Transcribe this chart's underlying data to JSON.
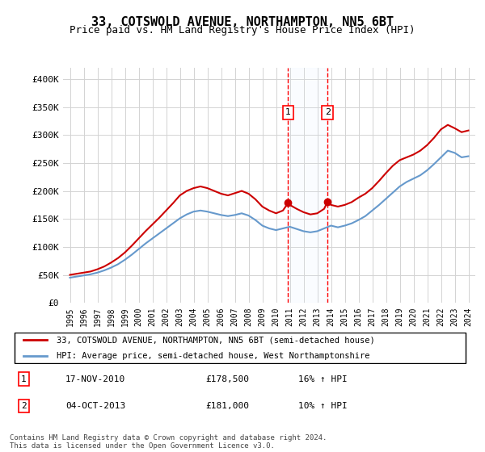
{
  "title": "33, COTSWOLD AVENUE, NORTHAMPTON, NN5 6BT",
  "subtitle": "Price paid vs. HM Land Registry's House Price Index (HPI)",
  "legend_line1": "33, COTSWOLD AVENUE, NORTHAMPTON, NN5 6BT (semi-detached house)",
  "legend_line2": "HPI: Average price, semi-detached house, West Northamptonshire",
  "footer": "Contains HM Land Registry data © Crown copyright and database right 2024.\nThis data is licensed under the Open Government Licence v3.0.",
  "sale1_label": "1",
  "sale1_date": "17-NOV-2010",
  "sale1_price": "£178,500",
  "sale1_hpi": "16% ↑ HPI",
  "sale2_label": "2",
  "sale2_date": "04-OCT-2013",
  "sale2_price": "£181,000",
  "sale2_hpi": "10% ↑ HPI",
  "property_color": "#cc0000",
  "hpi_color": "#6699cc",
  "annotation_bg": "#ddeeff",
  "ylim": [
    0,
    420000
  ],
  "yticks": [
    0,
    50000,
    100000,
    150000,
    200000,
    250000,
    300000,
    350000,
    400000
  ],
  "ytick_labels": [
    "£0",
    "£50K",
    "£100K",
    "£150K",
    "£200K",
    "£250K",
    "£300K",
    "£350K",
    "£400K"
  ],
  "sale1_x": 2010.88,
  "sale1_y": 178500,
  "sale2_x": 2013.75,
  "sale2_y": 181000,
  "property_x": [
    1995,
    1995.5,
    1996,
    1996.5,
    1997,
    1997.5,
    1998,
    1998.5,
    1999,
    1999.5,
    2000,
    2000.5,
    2001,
    2001.5,
    2002,
    2002.5,
    2003,
    2003.5,
    2004,
    2004.5,
    2005,
    2005.5,
    2006,
    2006.5,
    2007,
    2007.5,
    2008,
    2008.5,
    2009,
    2009.5,
    2010,
    2010.5,
    2010.88,
    2011,
    2011.5,
    2012,
    2012.5,
    2013,
    2013.5,
    2013.75,
    2014,
    2014.5,
    2015,
    2015.5,
    2016,
    2016.5,
    2017,
    2017.5,
    2018,
    2018.5,
    2019,
    2019.5,
    2020,
    2020.5,
    2021,
    2021.5,
    2022,
    2022.5,
    2023,
    2023.5,
    2024
  ],
  "property_y": [
    50000,
    52000,
    54000,
    56000,
    60000,
    65000,
    72000,
    80000,
    90000,
    102000,
    115000,
    128000,
    140000,
    152000,
    165000,
    178000,
    192000,
    200000,
    205000,
    208000,
    205000,
    200000,
    195000,
    192000,
    196000,
    200000,
    195000,
    185000,
    172000,
    165000,
    160000,
    165000,
    178500,
    175000,
    168000,
    162000,
    158000,
    160000,
    168000,
    181000,
    175000,
    172000,
    175000,
    180000,
    188000,
    195000,
    205000,
    218000,
    232000,
    245000,
    255000,
    260000,
    265000,
    272000,
    282000,
    295000,
    310000,
    318000,
    312000,
    305000,
    308000
  ],
  "hpi_x": [
    1995,
    1995.5,
    1996,
    1996.5,
    1997,
    1997.5,
    1998,
    1998.5,
    1999,
    1999.5,
    2000,
    2000.5,
    2001,
    2001.5,
    2002,
    2002.5,
    2003,
    2003.5,
    2004,
    2004.5,
    2005,
    2005.5,
    2006,
    2006.5,
    2007,
    2007.5,
    2008,
    2008.5,
    2009,
    2009.5,
    2010,
    2010.5,
    2011,
    2011.5,
    2012,
    2012.5,
    2013,
    2013.5,
    2014,
    2014.5,
    2015,
    2015.5,
    2016,
    2016.5,
    2017,
    2017.5,
    2018,
    2018.5,
    2019,
    2019.5,
    2020,
    2020.5,
    2021,
    2021.5,
    2022,
    2022.5,
    2023,
    2023.5,
    2024
  ],
  "hpi_y": [
    45000,
    47000,
    49000,
    51000,
    54000,
    58000,
    63000,
    69000,
    77000,
    86000,
    96000,
    106000,
    115000,
    124000,
    133000,
    142000,
    151000,
    158000,
    163000,
    165000,
    163000,
    160000,
    157000,
    155000,
    157000,
    160000,
    156000,
    148000,
    138000,
    133000,
    130000,
    133000,
    136000,
    132000,
    128000,
    126000,
    128000,
    133000,
    138000,
    135000,
    138000,
    142000,
    148000,
    155000,
    165000,
    175000,
    186000,
    197000,
    208000,
    216000,
    222000,
    228000,
    237000,
    248000,
    260000,
    272000,
    268000,
    260000,
    262000
  ],
  "xticks": [
    1995,
    1996,
    1997,
    1998,
    1999,
    2000,
    2001,
    2002,
    2003,
    2004,
    2005,
    2006,
    2007,
    2008,
    2009,
    2010,
    2011,
    2012,
    2013,
    2014,
    2015,
    2016,
    2017,
    2018,
    2019,
    2020,
    2021,
    2022,
    2023,
    2024
  ],
  "xlim": [
    1994.5,
    2024.5
  ]
}
